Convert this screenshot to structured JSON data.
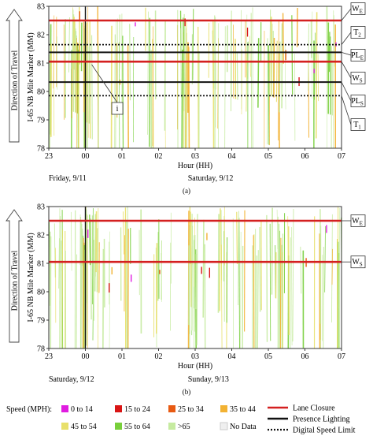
{
  "figure": {
    "direction_label": "Direction of Travel",
    "caption_a": "(a)",
    "caption_b": "(b)"
  },
  "chart_data": [
    {
      "type": "heatmap",
      "panel": "a",
      "xlabel": "Hour (HH)",
      "ylabel": "I-65 NB Mile Marker (MM)",
      "ylim": [
        78,
        83
      ],
      "yticks": [
        78,
        79,
        80,
        81,
        82,
        83
      ],
      "xlim": [
        23,
        31
      ],
      "xticks": [
        23,
        24,
        25,
        26,
        27,
        28,
        29,
        30,
        31
      ],
      "xtick_labels": [
        "23",
        "00",
        "01",
        "02",
        "03",
        "04",
        "05",
        "06",
        "07"
      ],
      "day_labels": [
        {
          "text": "Friday, 9/11",
          "hour": 23.0
        },
        {
          "text": "Saturday, 9/12",
          "hour": 26.8
        }
      ],
      "midnight_hour": 24,
      "lane_closures": [
        {
          "mm": 82.5,
          "label": "W",
          "sub": "E"
        },
        {
          "mm": 81.05,
          "label": "W",
          "sub": "S"
        }
      ],
      "presence_lighting": [
        {
          "mm": 81.38,
          "label": "PL",
          "sub": "E"
        },
        {
          "mm": 80.33,
          "label": "PL",
          "sub": "S"
        }
      ],
      "digital_speed_limit": [
        {
          "mm": 81.65,
          "label": "T",
          "sub": "2"
        },
        {
          "mm": 79.85,
          "label": "T",
          "sub": "1"
        }
      ],
      "callout": {
        "text": "i",
        "hour": 24.7,
        "mm": 79.5
      }
    },
    {
      "type": "heatmap",
      "panel": "b",
      "xlabel": "Hour (HH)",
      "ylabel": "I-65 NB Mile Marker (MM)",
      "ylim": [
        78,
        83
      ],
      "yticks": [
        78,
        79,
        80,
        81,
        82,
        83
      ],
      "xlim": [
        23,
        31
      ],
      "xticks": [
        23,
        24,
        25,
        26,
        27,
        28,
        29,
        30,
        31
      ],
      "xtick_labels": [
        "23",
        "00",
        "01",
        "02",
        "03",
        "04",
        "05",
        "06",
        "07"
      ],
      "day_labels": [
        {
          "text": "Saturday, 9/12",
          "hour": 23.0
        },
        {
          "text": "Sunday, 9/13",
          "hour": 26.8
        }
      ],
      "midnight_hour": 24,
      "lane_closures": [
        {
          "mm": 82.5,
          "label": "W",
          "sub": "E"
        },
        {
          "mm": 81.05,
          "label": "W",
          "sub": "S"
        }
      ],
      "presence_lighting": [],
      "digital_speed_limit": []
    }
  ],
  "legend": {
    "speed_title": "Speed (MPH):",
    "speed_bins": [
      {
        "label": "0 to 14",
        "color": "#e01ce0"
      },
      {
        "label": "15 to 24",
        "color": "#d91515"
      },
      {
        "label": "25 to 34",
        "color": "#e85a12"
      },
      {
        "label": "35 to 44",
        "color": "#f2b233"
      },
      {
        "label": "45 to 54",
        "color": "#e8e06a"
      },
      {
        "label": "55 to 64",
        "color": "#78cf3b"
      },
      {
        "label": ">65",
        "color": "#c6eba0"
      },
      {
        "label": "No Data",
        "color": "#efefef"
      }
    ],
    "line_entries": [
      {
        "label": "Lane Closure",
        "color": "#d42020",
        "style": "solid"
      },
      {
        "label": "Presence Lighting",
        "color": "#111111",
        "style": "solid"
      },
      {
        "label": "Digital Speed Limit",
        "color": "#111111",
        "style": "dotted"
      }
    ]
  }
}
